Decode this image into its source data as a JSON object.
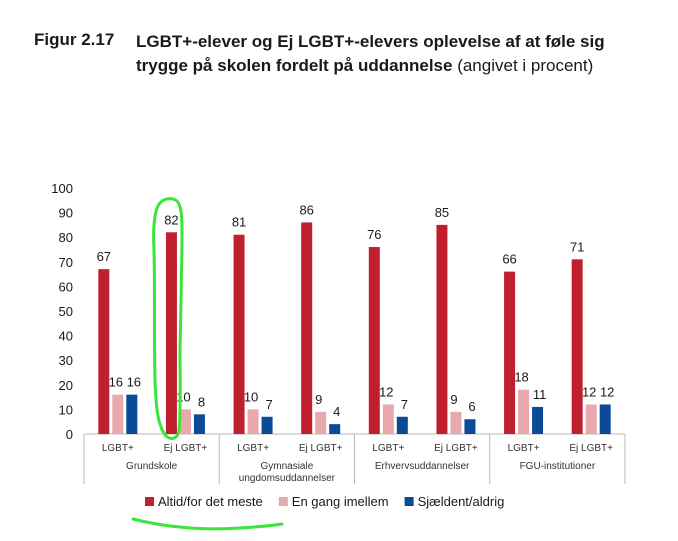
{
  "figure": {
    "number": "Figur 2.17",
    "title": "LGBT+-elever og Ej LGBT+-elevers oplevelse af at føle sig trygge på skolen fordelt på uddannelse",
    "note": "(angivet i procent)"
  },
  "colors": {
    "series_1": "#c0202e",
    "series_2": "#e8a8ac",
    "series_3": "#0a4a96",
    "highlight": "#39e639"
  },
  "chart_data": {
    "type": "bar",
    "title": "",
    "xlabel": "",
    "ylabel": "",
    "ylim": [
      0,
      100
    ],
    "yticks": [
      0,
      10,
      20,
      30,
      40,
      50,
      60,
      70,
      80,
      90,
      100
    ],
    "grid": false,
    "legend_position": "bottom",
    "groups": [
      {
        "name": "Grundskole",
        "categories": [
          "LGBT+",
          "Ej LGBT+"
        ]
      },
      {
        "name": "Gymnasiale ungdomsuddannelser",
        "categories": [
          "LGBT+",
          "Ej LGBT+"
        ]
      },
      {
        "name": "Erhvervsuddannelser",
        "categories": [
          "LGBT+",
          "Ej LGBT+"
        ]
      },
      {
        "name": "FGU-institutioner",
        "categories": [
          "LGBT+",
          "Ej LGBT+"
        ]
      }
    ],
    "categories": [
      "LGBT+",
      "Ej LGBT+",
      "LGBT+",
      "Ej LGBT+",
      "LGBT+",
      "Ej LGBT+",
      "LGBT+",
      "Ej LGBT+"
    ],
    "series": [
      {
        "name": "Altid/for det meste",
        "values": [
          67,
          82,
          81,
          86,
          76,
          85,
          66,
          71
        ]
      },
      {
        "name": "En gang imellem",
        "values": [
          16,
          10,
          10,
          9,
          12,
          9,
          18,
          12
        ]
      },
      {
        "name": "Sjældent/aldrig",
        "values": [
          16,
          8,
          7,
          4,
          7,
          6,
          11,
          12
        ]
      }
    ],
    "annotation": "Grundskole, Ej LGBT+ circled in green"
  }
}
